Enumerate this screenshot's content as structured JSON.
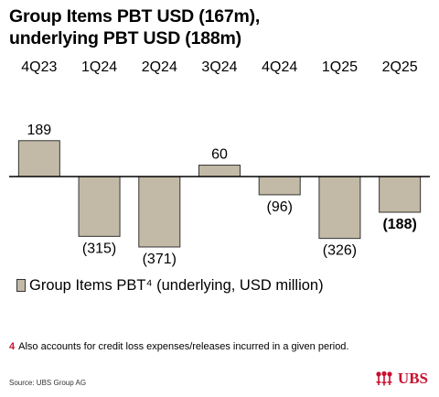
{
  "title_lines": [
    "Group Items PBT USD (167m),",
    "underlying PBT USD (188m)"
  ],
  "legend": {
    "label": "Group Items PBT⁴ (underlying, USD million)"
  },
  "footnote": {
    "number": "4",
    "text": "Also accounts for credit loss expenses/releases incurred in a given period."
  },
  "source": "Source: UBS Group AG",
  "logo": {
    "text": "UBS",
    "icon": "ubs-keys-icon"
  },
  "colors": {
    "bar": "#c2baa6",
    "bar_stroke": "#333333",
    "baseline": "#000000",
    "brand": "#c8102e"
  },
  "chart_data": {
    "type": "bar",
    "categories": [
      "4Q23",
      "1Q24",
      "2Q24",
      "3Q24",
      "4Q24",
      "1Q25",
      "2Q25"
    ],
    "series": [
      {
        "values": [
          189,
          -315,
          -371,
          60,
          -96,
          -326,
          -188
        ]
      }
    ],
    "data_labels": [
      "189",
      "(315)",
      "(371)",
      "60",
      "(96)",
      "(326)",
      "(188)"
    ],
    "highlighted_index": 6,
    "ylim": [
      -420,
      240
    ],
    "grid": false,
    "legend_position": "bottom-left"
  }
}
